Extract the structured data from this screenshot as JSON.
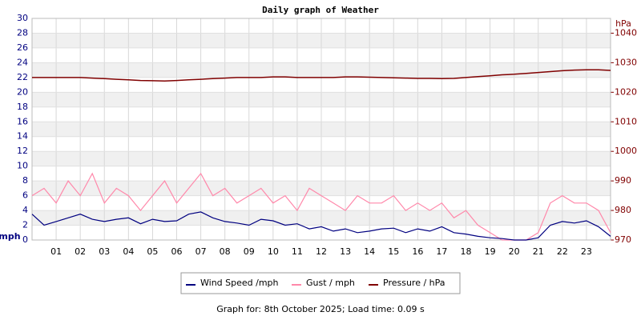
{
  "chart_data": {
    "type": "line",
    "title": "Daily graph of Weather",
    "y_label": "mph",
    "y2_label": "hPa",
    "footer": "Graph for: 8th October 2025; Load time: 0.09 s",
    "x": [
      0,
      0.5,
      1,
      1.5,
      2,
      2.5,
      3,
      3.5,
      4,
      4.5,
      5,
      5.5,
      6,
      6.5,
      7,
      7.5,
      8,
      8.5,
      9,
      9.5,
      10,
      10.5,
      11,
      11.5,
      12,
      12.5,
      13,
      13.5,
      14,
      14.5,
      15,
      15.5,
      16,
      16.5,
      17,
      17.5,
      18,
      18.5,
      19,
      19.5,
      20,
      20.5,
      21,
      21.5,
      22,
      22.5,
      23,
      23.5,
      24
    ],
    "xlim": [
      0,
      24
    ],
    "xticks": [
      {
        "value": 1,
        "label": "01"
      },
      {
        "value": 2,
        "label": "02"
      },
      {
        "value": 3,
        "label": "03"
      },
      {
        "value": 4,
        "label": "04"
      },
      {
        "value": 5,
        "label": "05"
      },
      {
        "value": 6,
        "label": "06"
      },
      {
        "value": 7,
        "label": "07"
      },
      {
        "value": 8,
        "label": "08"
      },
      {
        "value": 9,
        "label": "09"
      },
      10,
      11,
      12,
      13,
      14,
      15,
      16,
      17,
      18,
      19,
      20,
      21,
      22,
      23
    ],
    "ylim": [
      0,
      30
    ],
    "yticks": [
      0,
      2,
      4,
      6,
      8,
      10,
      12,
      14,
      16,
      18,
      20,
      22,
      24,
      26,
      28,
      30
    ],
    "y2lim": [
      970,
      1045
    ],
    "y2ticks": [
      970,
      980,
      990,
      1000,
      1010,
      1020,
      1030,
      1040
    ],
    "grid": true,
    "legend": "bottom",
    "series": [
      {
        "name": "Wind Speed /mph",
        "color": "#000080",
        "values": [
          3.5,
          2.0,
          2.5,
          3.0,
          3.5,
          2.8,
          2.5,
          2.8,
          3.0,
          2.2,
          2.8,
          2.5,
          2.6,
          3.5,
          3.8,
          3.0,
          2.5,
          2.3,
          2.0,
          2.8,
          2.6,
          2.0,
          2.2,
          1.5,
          1.8,
          1.2,
          1.5,
          1.0,
          1.2,
          1.5,
          1.6,
          1.0,
          1.5,
          1.2,
          1.8,
          1.0,
          0.8,
          0.5,
          0.3,
          0.2,
          0,
          0,
          0.3,
          2.0,
          2.5,
          2.3,
          2.6,
          1.8,
          0.5
        ]
      },
      {
        "name": "Gust / mph",
        "color": "#ff88aa",
        "values": [
          6,
          7,
          5,
          8,
          6,
          9,
          5,
          7,
          6,
          4,
          6,
          8,
          5,
          7,
          9,
          6,
          7,
          5,
          6,
          7,
          5,
          6,
          4,
          7,
          6,
          5,
          4,
          6,
          5,
          5,
          6,
          4,
          5,
          4,
          5,
          3,
          4,
          2,
          1,
          0,
          0,
          0,
          1,
          5,
          6,
          5,
          5,
          4,
          1
        ]
      },
      {
        "name": "Pressure / hPa",
        "color": "#800000",
        "axis": "y2",
        "values": [
          1025,
          1025,
          1025,
          1025,
          1025,
          1024.8,
          1024.6,
          1024.4,
          1024.2,
          1024,
          1023.9,
          1023.8,
          1024,
          1024.2,
          1024.4,
          1024.6,
          1024.8,
          1025,
          1025,
          1025,
          1025.2,
          1025.2,
          1025,
          1025,
          1025,
          1025,
          1025.2,
          1025.2,
          1025.1,
          1025,
          1024.9,
          1024.8,
          1024.7,
          1024.7,
          1024.6,
          1024.7,
          1025,
          1025.3,
          1025.6,
          1025.9,
          1026.1,
          1026.4,
          1026.7,
          1027,
          1027.3,
          1027.5,
          1027.6,
          1027.6,
          1027.4
        ]
      }
    ]
  }
}
